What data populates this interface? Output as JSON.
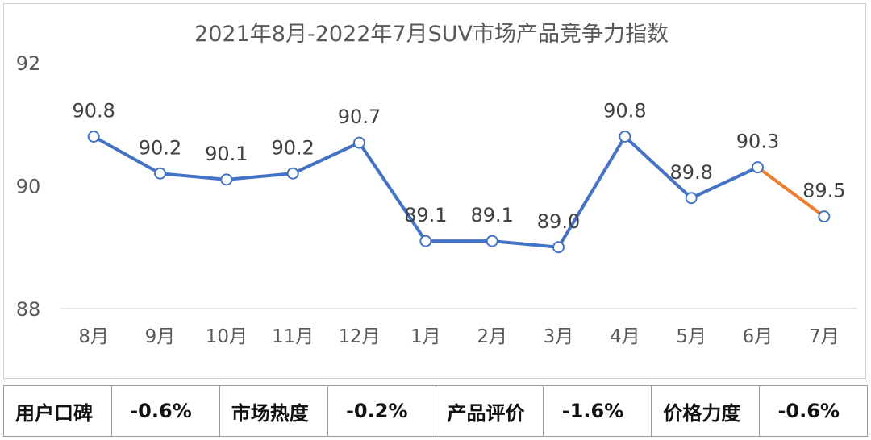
{
  "chart_data": {
    "type": "line",
    "title": "2021年8月-2022年7月SUV市场产品竞争力指数",
    "categories": [
      "8月",
      "9月",
      "10月",
      "11月",
      "12月",
      "1月",
      "2月",
      "3月",
      "4月",
      "5月",
      "6月",
      "7月"
    ],
    "values": [
      90.8,
      90.2,
      90.1,
      90.2,
      90.7,
      89.1,
      89.1,
      89.0,
      90.8,
      89.8,
      90.3,
      89.5
    ],
    "data_labels": [
      "90.8",
      "90.2",
      "90.1",
      "90.2",
      "90.7",
      "89.1",
      "89.1",
      "89.0",
      "90.8",
      "89.8",
      "90.3",
      "89.5"
    ],
    "yticks": [
      "88",
      "90",
      "92"
    ],
    "ylim": [
      88,
      92
    ],
    "grid": false,
    "series_color": "#4472c4",
    "last_segment_color": "#ed7d31"
  },
  "metrics": [
    {
      "label": "用户口碑",
      "value": "-0.6%"
    },
    {
      "label": "市场热度",
      "value": "-0.2%"
    },
    {
      "label": "产品评价",
      "value": "-1.6%"
    },
    {
      "label": "价格力度",
      "value": "-0.6%"
    }
  ]
}
